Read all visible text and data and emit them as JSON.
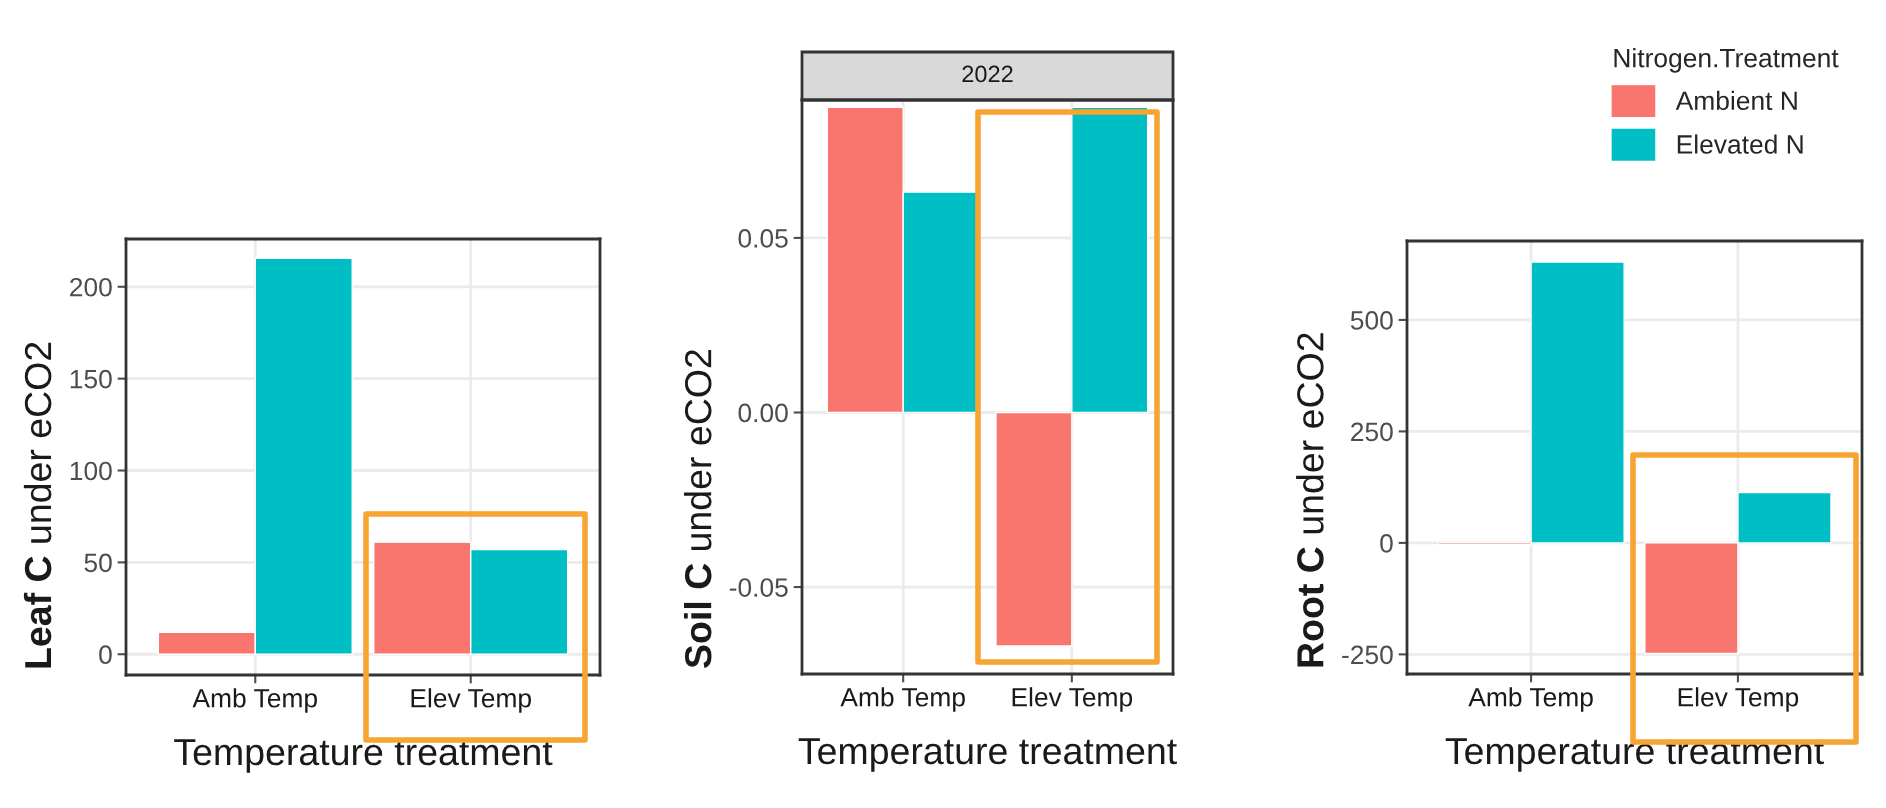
{
  "chart_data": [
    {
      "type": "bar",
      "categories": [
        "Amb Temp",
        "Elev Temp"
      ],
      "xlabel": "Temperature treatment",
      "ylabel": "Leaf C under eCO2",
      "ylim": [
        -11.3,
        226
      ],
      "yticks": [
        0,
        50,
        100,
        150,
        200
      ],
      "grid": true,
      "series": [
        {
          "color": "#f8766d",
          "values": [
            12,
            61
          ]
        },
        {
          "color": "#00bfc4",
          "values": [
            215.5,
            57
          ]
        }
      ]
    },
    {
      "type": "bar",
      "title": "2022",
      "categories": [
        "Amb Temp",
        "Elev Temp"
      ],
      "xlabel": "Temperature treatment",
      "ylabel": "Soil C under eCO2",
      "ylim": [
        -0.0749,
        0.0895
      ],
      "yticks": [
        {
          "value": -0.05,
          "label": "-0.05"
        },
        {
          "value": 0,
          "label": "0.00"
        },
        0.05
      ],
      "grid": true,
      "series": [
        {
          "color": "#f8766d",
          "values": [
            0.0874,
            -0.0669
          ]
        },
        {
          "color": "#00bfc4",
          "values": [
            0.0631,
            0.0874
          ]
        }
      ]
    },
    {
      "type": "bar",
      "categories": [
        "Amb Temp",
        "Elev Temp"
      ],
      "xlabel": "Temperature treatment",
      "ylabel": "Root C under eCO2",
      "ylim": [
        -294,
        677
      ],
      "yticks": [
        -250,
        0,
        250,
        500
      ],
      "grid": true,
      "legend": "top",
      "legend_title": "Nitrogen.Treatment",
      "series": [
        {
          "name": "Ambient N",
          "color": "#f8766d",
          "values": [
            -4,
            -248
          ]
        },
        {
          "name": "Elevated N",
          "color": "#00bfc4",
          "values": [
            630,
            113
          ]
        }
      ]
    }
  ]
}
